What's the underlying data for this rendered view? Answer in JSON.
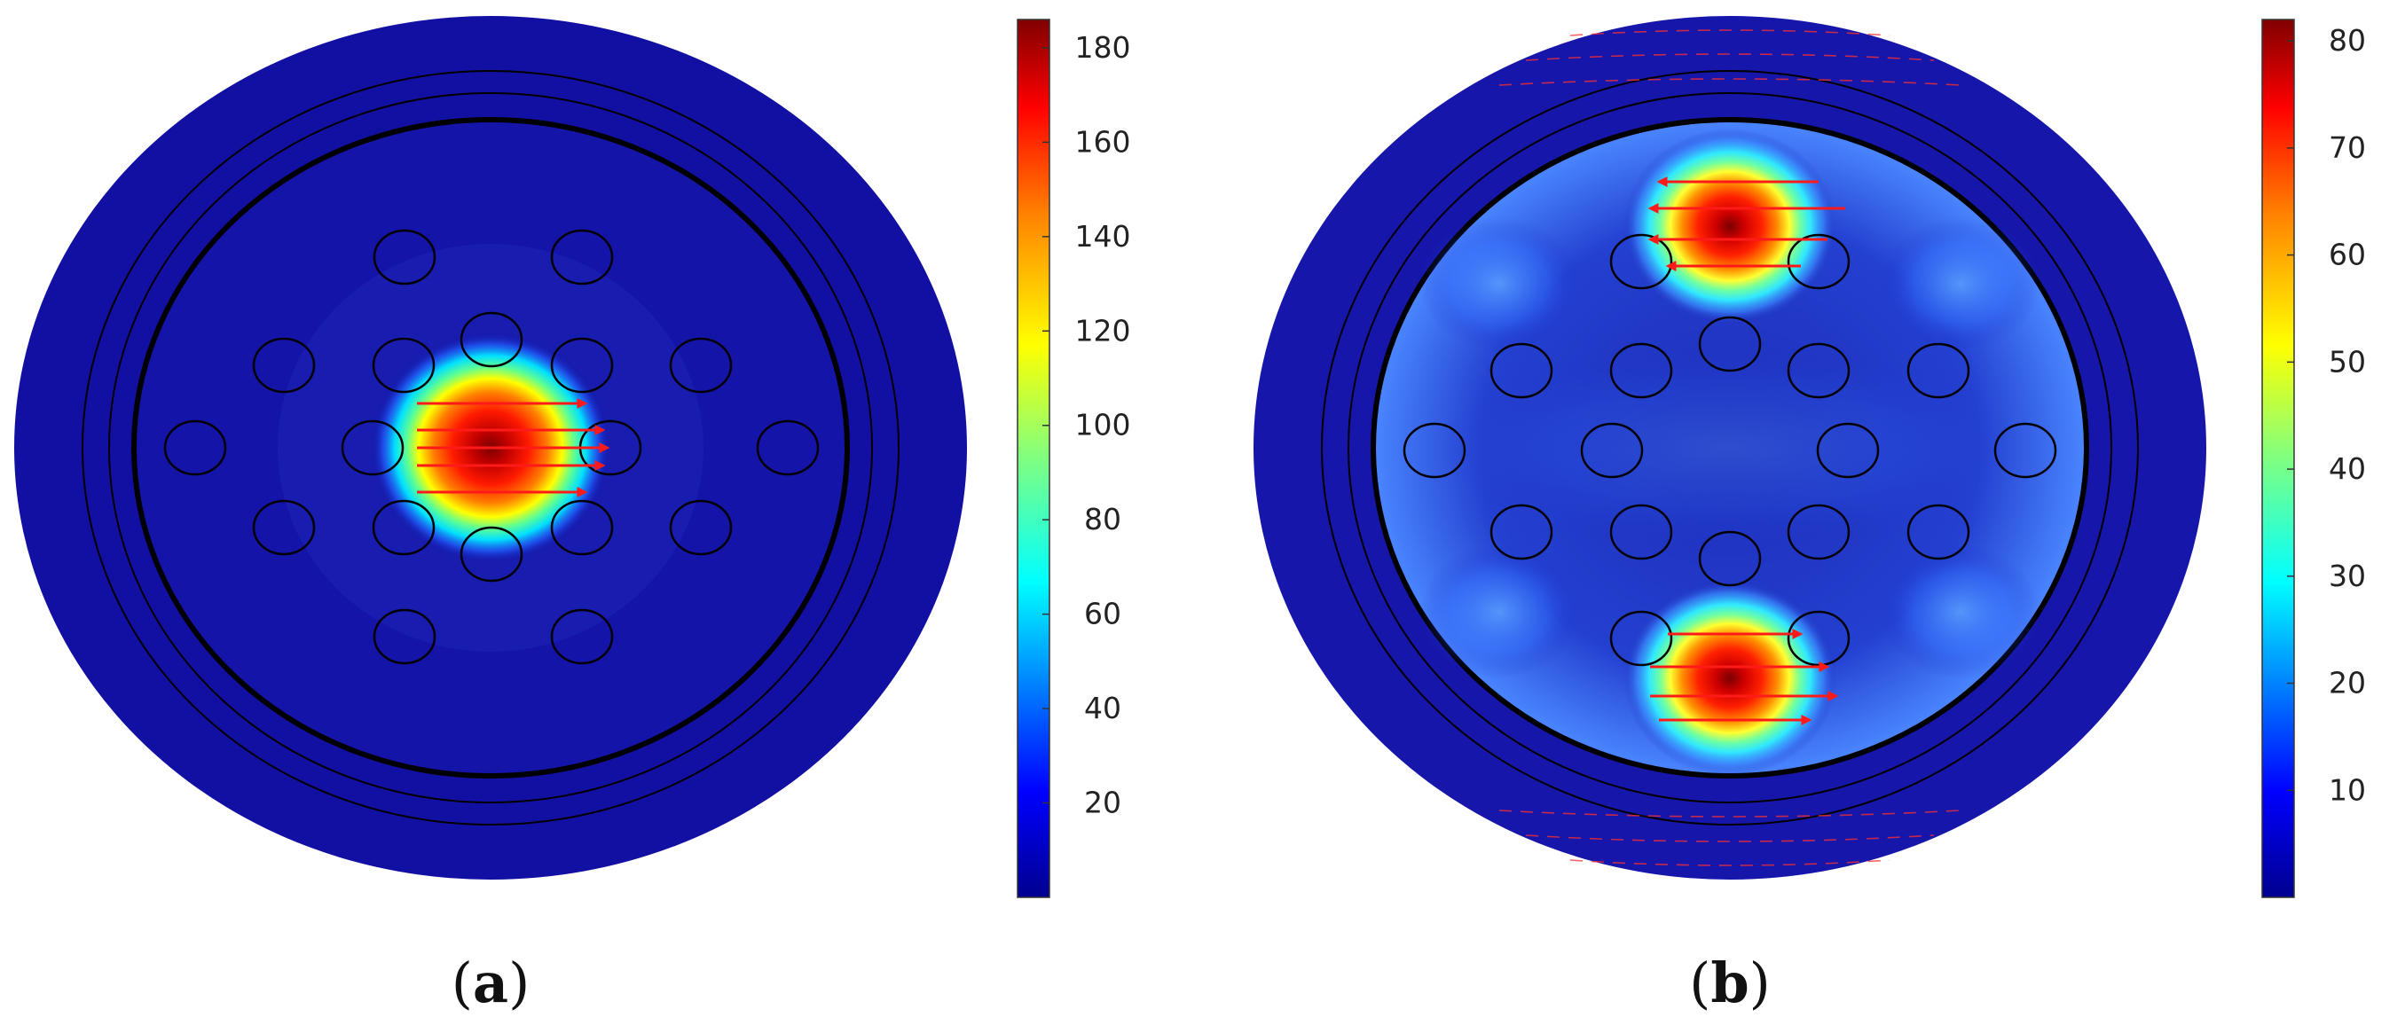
{
  "figure": {
    "panels": [
      {
        "id": "a",
        "label": "a",
        "colorbar": {
          "min": 0,
          "max": 186,
          "ticks": [
            20,
            40,
            60,
            80,
            100,
            120,
            140,
            160,
            180
          ]
        },
        "mode": "central",
        "hot_spots": [
          {
            "cx": 0.0,
            "cy": 0.0,
            "peak": 186
          }
        ]
      },
      {
        "id": "b",
        "label": "b",
        "colorbar": {
          "min": 0,
          "max": 82,
          "ticks": [
            10,
            20,
            30,
            40,
            50,
            60,
            70,
            80
          ]
        },
        "mode": "split",
        "hot_spots": [
          {
            "cx": 0.0,
            "cy": -0.5,
            "peak": 82
          },
          {
            "cx": 0.0,
            "cy": 0.5,
            "peak": 82
          }
        ]
      }
    ],
    "colors": {
      "background_field": "#1010a0",
      "outline": "#000000",
      "arrow": "#ff1a1a",
      "colormap": [
        "#00008f",
        "#0000ff",
        "#0080ff",
        "#00ffff",
        "#80ff80",
        "#ffff00",
        "#ff8000",
        "#ff0000",
        "#800000"
      ]
    }
  }
}
